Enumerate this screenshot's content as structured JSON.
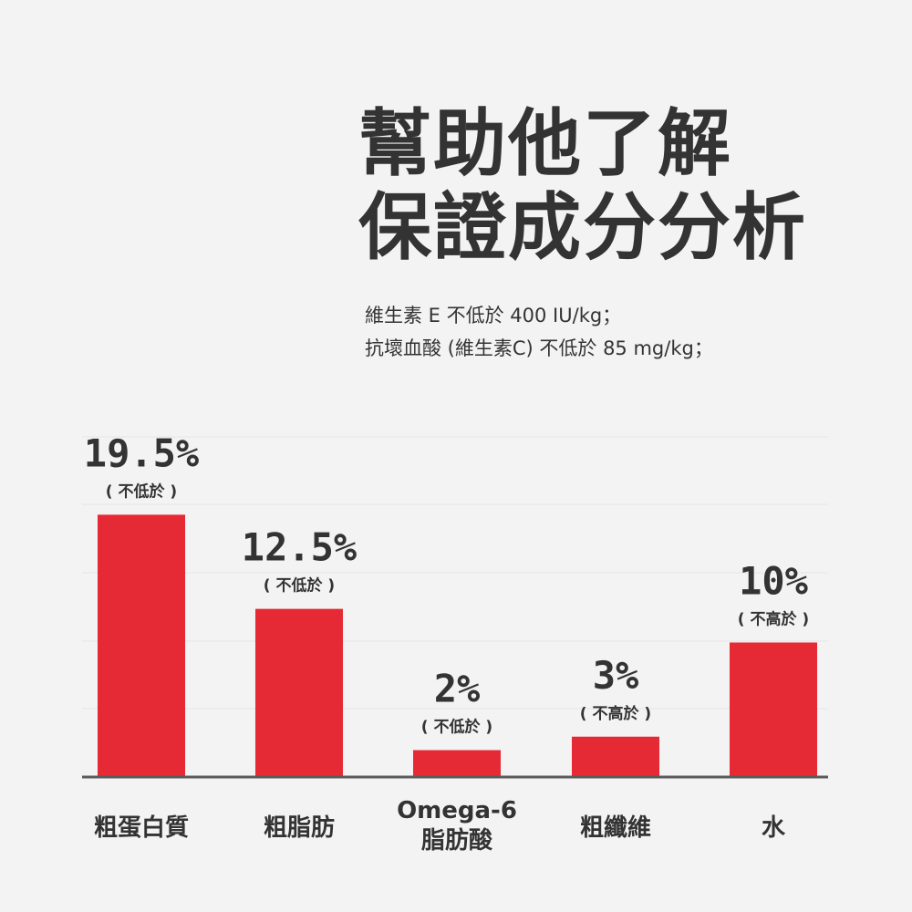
{
  "header": {
    "title_line1": "幫助他了解",
    "title_line2": "保證成分分析",
    "note_line1": "維生素 E 不低於 400 IU/kg；",
    "note_line2": "抗壞血酸 (維生素C) 不低於 85 mg/kg；"
  },
  "colors": {
    "bar": "#e52a36",
    "text": "#333333",
    "background": "#f3f3f3",
    "grid": "#e4e4e4",
    "axis": "#5a5a5a"
  },
  "chart_data": {
    "type": "bar",
    "categories": [
      "粗蛋白質",
      "粗脂肪",
      "Omega-6 脂肪酸",
      "粗纖維",
      "水"
    ],
    "category_lines": [
      [
        "粗蛋白質"
      ],
      [
        "粗脂肪"
      ],
      [
        "Omega-6",
        "脂肪酸"
      ],
      [
        "粗纖維"
      ],
      [
        "水"
      ]
    ],
    "values": [
      19.5,
      12.5,
      2,
      3,
      10
    ],
    "value_labels": [
      "19.5%",
      "12.5%",
      "2%",
      "3%",
      "10%"
    ],
    "condition_labels": [
      "( 不低於 )",
      "( 不低於 )",
      "( 不低於 )",
      "( 不高於 )",
      "( 不高於 )"
    ],
    "title": "",
    "xlabel": "",
    "ylabel": "",
    "ylim": [
      0,
      20
    ],
    "grid": true,
    "legend": "none"
  }
}
